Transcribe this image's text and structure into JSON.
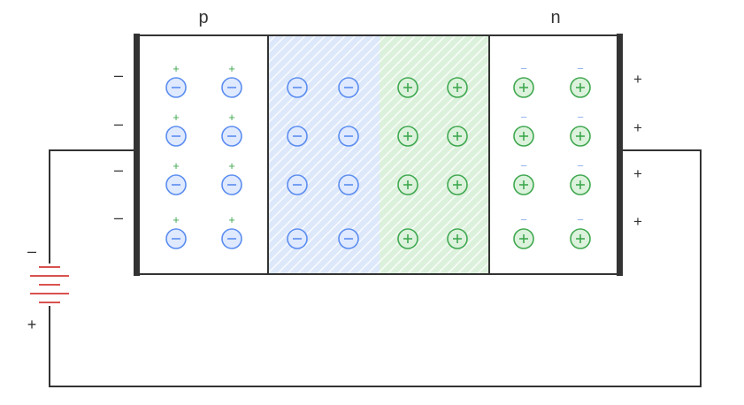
{
  "labels": {
    "p_region": "p",
    "n_region": "n",
    "left_terminal_sign": "–",
    "right_terminal_sign": "+",
    "battery_top_sign": "–",
    "battery_bottom_sign": "+",
    "minus_symbol": "−",
    "plus_symbol": "+"
  },
  "colors": {
    "p_ion": "#5b8def",
    "p_ion_fill": "#dfe9ff",
    "n_ion": "#3fa84f",
    "n_ion_fill": "#dcf2dc",
    "p_hole_sign": "#3fa84f",
    "n_electron_sign": "#8fb0f0",
    "depletion_p": "#d6e4fb",
    "depletion_n": "#d8f0d8",
    "battery": "#d9534f",
    "wire": "#333333",
    "frame": "#333333"
  },
  "rows": 4,
  "columns": [
    {
      "region": "p",
      "ion": "negative",
      "carrier": "+"
    },
    {
      "region": "p",
      "ion": "negative",
      "carrier": "+"
    },
    {
      "region": "depletion-p",
      "ion": "negative",
      "carrier": ""
    },
    {
      "region": "depletion-p",
      "ion": "negative",
      "carrier": ""
    },
    {
      "region": "depletion-n",
      "ion": "positive",
      "carrier": ""
    },
    {
      "region": "depletion-n",
      "ion": "positive",
      "carrier": ""
    },
    {
      "region": "n",
      "ion": "positive",
      "carrier": "−"
    },
    {
      "region": "n",
      "ion": "positive",
      "carrier": "−"
    }
  ]
}
